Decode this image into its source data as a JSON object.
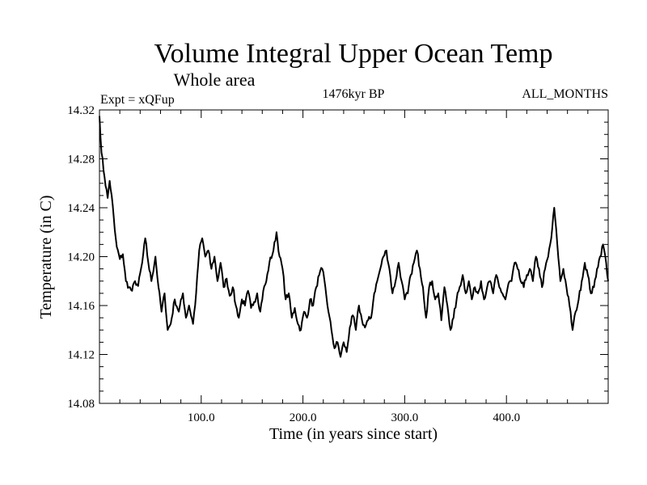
{
  "chart_data": {
    "type": "line",
    "title": "Volume Integral Upper Ocean Temp",
    "subtitle": "Whole area",
    "left_label": "Expt = xQFup",
    "center_label": "1476kyr BP",
    "right_label": "ALL_MONTHS",
    "xlabel": "Time (in years since start)",
    "ylabel": "Temperature (in C)",
    "xlim": [
      0,
      500
    ],
    "ylim": [
      14.08,
      14.32
    ],
    "x_ticks": [
      100,
      200,
      300,
      400
    ],
    "x_tick_labels": [
      "100.0",
      "200.0",
      "300.0",
      "400.0"
    ],
    "y_ticks": [
      14.08,
      14.12,
      14.16,
      14.2,
      14.24,
      14.28,
      14.32
    ],
    "y_tick_labels": [
      "14.08",
      "14.12",
      "14.16",
      "14.20",
      "14.24",
      "14.28",
      "14.32"
    ],
    "grid": false,
    "line_color": "#000000",
    "keypoints": [
      [
        0,
        14.315
      ],
      [
        2,
        14.285
      ],
      [
        5,
        14.265
      ],
      [
        8,
        14.248
      ],
      [
        10,
        14.262
      ],
      [
        12,
        14.25
      ],
      [
        15,
        14.222
      ],
      [
        17,
        14.208
      ],
      [
        20,
        14.198
      ],
      [
        23,
        14.202
      ],
      [
        26,
        14.18
      ],
      [
        29,
        14.175
      ],
      [
        32,
        14.172
      ],
      [
        35,
        14.18
      ],
      [
        38,
        14.176
      ],
      [
        42,
        14.195
      ],
      [
        45,
        14.215
      ],
      [
        48,
        14.195
      ],
      [
        51,
        14.18
      ],
      [
        55,
        14.2
      ],
      [
        58,
        14.175
      ],
      [
        61,
        14.155
      ],
      [
        64,
        14.17
      ],
      [
        67,
        14.14
      ],
      [
        70,
        14.145
      ],
      [
        74,
        14.165
      ],
      [
        78,
        14.155
      ],
      [
        82,
        14.17
      ],
      [
        85,
        14.15
      ],
      [
        88,
        14.16
      ],
      [
        92,
        14.145
      ],
      [
        95,
        14.17
      ],
      [
        98,
        14.205
      ],
      [
        101,
        14.215
      ],
      [
        104,
        14.2
      ],
      [
        107,
        14.205
      ],
      [
        110,
        14.19
      ],
      [
        113,
        14.2
      ],
      [
        116,
        14.18
      ],
      [
        119,
        14.195
      ],
      [
        122,
        14.175
      ],
      [
        125,
        14.182
      ],
      [
        128,
        14.168
      ],
      [
        131,
        14.175
      ],
      [
        134,
        14.16
      ],
      [
        137,
        14.15
      ],
      [
        140,
        14.165
      ],
      [
        143,
        14.16
      ],
      [
        146,
        14.172
      ],
      [
        149,
        14.158
      ],
      [
        152,
        14.163
      ],
      [
        155,
        14.17
      ],
      [
        158,
        14.155
      ],
      [
        161,
        14.172
      ],
      [
        164,
        14.18
      ],
      [
        167,
        14.195
      ],
      [
        171,
        14.205
      ],
      [
        174,
        14.22
      ],
      [
        177,
        14.2
      ],
      [
        180,
        14.19
      ],
      [
        183,
        14.165
      ],
      [
        186,
        14.17
      ],
      [
        189,
        14.15
      ],
      [
        192,
        14.158
      ],
      [
        195,
        14.145
      ],
      [
        198,
        14.14
      ],
      [
        201,
        14.155
      ],
      [
        204,
        14.15
      ],
      [
        207,
        14.165
      ],
      [
        210,
        14.16
      ],
      [
        213,
        14.175
      ],
      [
        216,
        14.185
      ],
      [
        219,
        14.19
      ],
      [
        222,
        14.175
      ],
      [
        225,
        14.155
      ],
      [
        228,
        14.14
      ],
      [
        231,
        14.125
      ],
      [
        234,
        14.13
      ],
      [
        237,
        14.118
      ],
      [
        240,
        14.13
      ],
      [
        243,
        14.122
      ],
      [
        246,
        14.142
      ],
      [
        249,
        14.152
      ],
      [
        252,
        14.14
      ],
      [
        255,
        14.16
      ],
      [
        258,
        14.148
      ],
      [
        261,
        14.142
      ],
      [
        264,
        14.148
      ],
      [
        267,
        14.15
      ],
      [
        270,
        14.17
      ],
      [
        273,
        14.18
      ],
      [
        276,
        14.19
      ],
      [
        279,
        14.2
      ],
      [
        282,
        14.205
      ],
      [
        285,
        14.19
      ],
      [
        288,
        14.17
      ],
      [
        291,
        14.18
      ],
      [
        294,
        14.195
      ],
      [
        297,
        14.18
      ],
      [
        300,
        14.165
      ],
      [
        303,
        14.17
      ],
      [
        306,
        14.185
      ],
      [
        309,
        14.195
      ],
      [
        312,
        14.205
      ],
      [
        315,
        14.19
      ],
      [
        318,
        14.175
      ],
      [
        321,
        14.15
      ],
      [
        324,
        14.175
      ],
      [
        327,
        14.18
      ],
      [
        330,
        14.165
      ],
      [
        333,
        14.17
      ],
      [
        336,
        14.148
      ],
      [
        339,
        14.175
      ],
      [
        342,
        14.16
      ],
      [
        345,
        14.14
      ],
      [
        348,
        14.15
      ],
      [
        351,
        14.165
      ],
      [
        354,
        14.175
      ],
      [
        357,
        14.185
      ],
      [
        360,
        14.17
      ],
      [
        363,
        14.18
      ],
      [
        366,
        14.165
      ],
      [
        369,
        14.175
      ],
      [
        372,
        14.17
      ],
      [
        375,
        14.18
      ],
      [
        378,
        14.165
      ],
      [
        381,
        14.175
      ],
      [
        384,
        14.18
      ],
      [
        387,
        14.17
      ],
      [
        390,
        14.185
      ],
      [
        393,
        14.175
      ],
      [
        396,
        14.17
      ],
      [
        399,
        14.165
      ],
      [
        402,
        14.178
      ],
      [
        405,
        14.18
      ],
      [
        408,
        14.195
      ],
      [
        411,
        14.19
      ],
      [
        414,
        14.18
      ],
      [
        417,
        14.175
      ],
      [
        420,
        14.185
      ],
      [
        423,
        14.19
      ],
      [
        426,
        14.18
      ],
      [
        429,
        14.2
      ],
      [
        432,
        14.19
      ],
      [
        435,
        14.175
      ],
      [
        438,
        14.19
      ],
      [
        441,
        14.2
      ],
      [
        444,
        14.215
      ],
      [
        447,
        14.24
      ],
      [
        450,
        14.21
      ],
      [
        453,
        14.18
      ],
      [
        456,
        14.19
      ],
      [
        459,
        14.175
      ],
      [
        462,
        14.16
      ],
      [
        465,
        14.14
      ],
      [
        468,
        14.155
      ],
      [
        471,
        14.165
      ],
      [
        474,
        14.18
      ],
      [
        477,
        14.195
      ],
      [
        480,
        14.185
      ],
      [
        483,
        14.17
      ],
      [
        486,
        14.175
      ],
      [
        489,
        14.19
      ],
      [
        492,
        14.2
      ],
      [
        495,
        14.21
      ],
      [
        498,
        14.195
      ],
      [
        500,
        14.18
      ]
    ]
  }
}
